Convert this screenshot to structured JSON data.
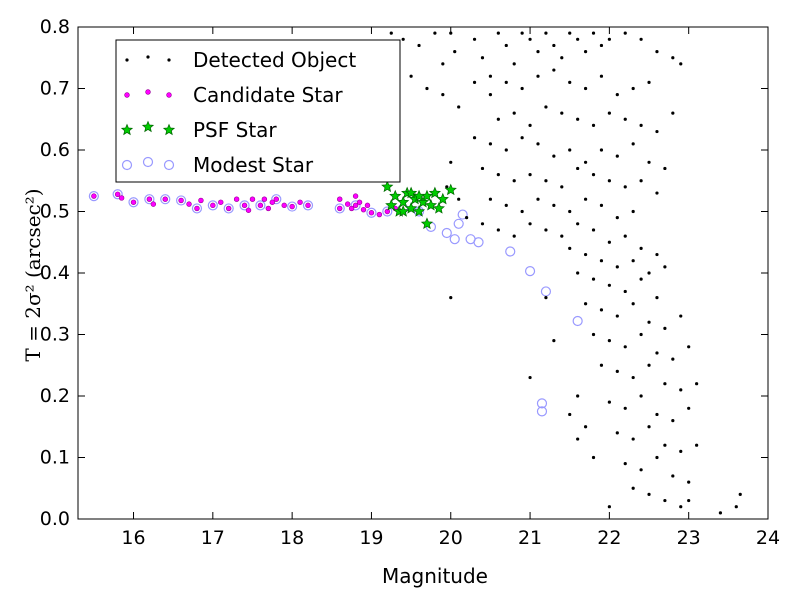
{
  "chart_data": {
    "type": "scatter",
    "xlabel": "Magnitude",
    "ylabel": "T = 2σ² (arcsec²)",
    "xlim": [
      15.3,
      24
    ],
    "ylim": [
      0.0,
      0.8
    ],
    "xticks": [
      "16",
      "17",
      "18",
      "19",
      "20",
      "21",
      "22",
      "23",
      "24"
    ],
    "yticks": [
      "0.0",
      "0.1",
      "0.2",
      "0.3",
      "0.4",
      "0.5",
      "0.6",
      "0.7",
      "0.8"
    ],
    "grid": false,
    "legend_position": "top-left",
    "colors": {
      "detected": "#000000",
      "candidate": "#ff00ff",
      "psf_fill": "#00cc00",
      "psf_edge": "#006400",
      "modest": "#9999ff"
    },
    "series": [
      {
        "name": "Detected Object",
        "marker": "dot",
        "points": [
          [
            19.25,
            0.79
          ],
          [
            19.4,
            0.78
          ],
          [
            19.6,
            0.77
          ],
          [
            19.8,
            0.79
          ],
          [
            20.0,
            0.79
          ],
          [
            20.05,
            0.76
          ],
          [
            19.9,
            0.74
          ],
          [
            20.3,
            0.78
          ],
          [
            20.4,
            0.75
          ],
          [
            20.5,
            0.72
          ],
          [
            20.6,
            0.79
          ],
          [
            20.7,
            0.77
          ],
          [
            20.8,
            0.74
          ],
          [
            20.9,
            0.79
          ],
          [
            21.0,
            0.78
          ],
          [
            21.1,
            0.76
          ],
          [
            21.2,
            0.79
          ],
          [
            21.3,
            0.77
          ],
          [
            21.4,
            0.75
          ],
          [
            21.5,
            0.79
          ],
          [
            21.6,
            0.78
          ],
          [
            21.7,
            0.76
          ],
          [
            21.8,
            0.79
          ],
          [
            21.9,
            0.77
          ],
          [
            22.0,
            0.78
          ],
          [
            22.2,
            0.79
          ],
          [
            22.4,
            0.78
          ],
          [
            22.6,
            0.76
          ],
          [
            22.8,
            0.75
          ],
          [
            22.9,
            0.74
          ],
          [
            19.5,
            0.72
          ],
          [
            19.7,
            0.7
          ],
          [
            19.9,
            0.69
          ],
          [
            20.1,
            0.67
          ],
          [
            20.3,
            0.71
          ],
          [
            20.5,
            0.69
          ],
          [
            20.7,
            0.71
          ],
          [
            20.9,
            0.7
          ],
          [
            21.1,
            0.72
          ],
          [
            21.3,
            0.73
          ],
          [
            21.5,
            0.71
          ],
          [
            21.7,
            0.7
          ],
          [
            21.9,
            0.72
          ],
          [
            22.1,
            0.69
          ],
          [
            22.3,
            0.7
          ],
          [
            22.5,
            0.71
          ],
          [
            20.6,
            0.65
          ],
          [
            20.8,
            0.66
          ],
          [
            21.0,
            0.64
          ],
          [
            21.2,
            0.67
          ],
          [
            21.4,
            0.66
          ],
          [
            21.6,
            0.65
          ],
          [
            21.8,
            0.64
          ],
          [
            22.0,
            0.66
          ],
          [
            22.2,
            0.65
          ],
          [
            22.4,
            0.64
          ],
          [
            22.6,
            0.63
          ],
          [
            22.8,
            0.66
          ],
          [
            20.3,
            0.62
          ],
          [
            20.5,
            0.61
          ],
          [
            20.7,
            0.6
          ],
          [
            20.9,
            0.62
          ],
          [
            21.1,
            0.61
          ],
          [
            21.3,
            0.59
          ],
          [
            21.5,
            0.6
          ],
          [
            21.7,
            0.58
          ],
          [
            21.9,
            0.6
          ],
          [
            22.1,
            0.59
          ],
          [
            22.3,
            0.61
          ],
          [
            22.5,
            0.58
          ],
          [
            22.7,
            0.57
          ],
          [
            20.4,
            0.57
          ],
          [
            20.6,
            0.56
          ],
          [
            20.8,
            0.55
          ],
          [
            21.0,
            0.56
          ],
          [
            21.2,
            0.55
          ],
          [
            21.4,
            0.54
          ],
          [
            21.6,
            0.57
          ],
          [
            21.8,
            0.56
          ],
          [
            22.0,
            0.55
          ],
          [
            22.2,
            0.54
          ],
          [
            22.4,
            0.55
          ],
          [
            22.6,
            0.53
          ],
          [
            20.5,
            0.52
          ],
          [
            20.7,
            0.51
          ],
          [
            20.9,
            0.5
          ],
          [
            21.1,
            0.52
          ],
          [
            21.3,
            0.51
          ],
          [
            21.5,
            0.5
          ],
          [
            21.7,
            0.52
          ],
          [
            21.9,
            0.51
          ],
          [
            22.1,
            0.49
          ],
          [
            22.3,
            0.5
          ],
          [
            20.4,
            0.48
          ],
          [
            20.6,
            0.47
          ],
          [
            20.8,
            0.46
          ],
          [
            21.0,
            0.48
          ],
          [
            21.2,
            0.47
          ],
          [
            21.4,
            0.46
          ],
          [
            21.6,
            0.48
          ],
          [
            21.8,
            0.47
          ],
          [
            22.0,
            0.45
          ],
          [
            22.2,
            0.46
          ],
          [
            22.4,
            0.44
          ],
          [
            22.6,
            0.43
          ],
          [
            21.5,
            0.44
          ],
          [
            21.7,
            0.43
          ],
          [
            21.9,
            0.42
          ],
          [
            22.1,
            0.41
          ],
          [
            22.3,
            0.42
          ],
          [
            22.5,
            0.4
          ],
          [
            22.7,
            0.41
          ],
          [
            21.6,
            0.4
          ],
          [
            21.8,
            0.39
          ],
          [
            22.0,
            0.38
          ],
          [
            22.2,
            0.37
          ],
          [
            22.4,
            0.39
          ],
          [
            22.6,
            0.36
          ],
          [
            21.7,
            0.35
          ],
          [
            21.9,
            0.34
          ],
          [
            22.1,
            0.33
          ],
          [
            22.3,
            0.35
          ],
          [
            22.5,
            0.32
          ],
          [
            22.7,
            0.31
          ],
          [
            22.9,
            0.33
          ],
          [
            21.8,
            0.3
          ],
          [
            22.0,
            0.29
          ],
          [
            22.2,
            0.28
          ],
          [
            22.4,
            0.3
          ],
          [
            22.6,
            0.27
          ],
          [
            22.8,
            0.26
          ],
          [
            23.0,
            0.28
          ],
          [
            21.9,
            0.25
          ],
          [
            22.1,
            0.24
          ],
          [
            22.3,
            0.23
          ],
          [
            22.5,
            0.25
          ],
          [
            22.7,
            0.22
          ],
          [
            22.9,
            0.21
          ],
          [
            23.1,
            0.22
          ],
          [
            21.6,
            0.2
          ],
          [
            22.0,
            0.19
          ],
          [
            22.2,
            0.18
          ],
          [
            22.4,
            0.2
          ],
          [
            22.6,
            0.17
          ],
          [
            22.8,
            0.16
          ],
          [
            23.0,
            0.18
          ],
          [
            21.7,
            0.15
          ],
          [
            22.1,
            0.14
          ],
          [
            22.3,
            0.13
          ],
          [
            22.5,
            0.15
          ],
          [
            22.7,
            0.12
          ],
          [
            22.9,
            0.11
          ],
          [
            23.1,
            0.12
          ],
          [
            21.8,
            0.1
          ],
          [
            22.2,
            0.09
          ],
          [
            22.4,
            0.08
          ],
          [
            22.6,
            0.1
          ],
          [
            22.8,
            0.07
          ],
          [
            23.0,
            0.06
          ],
          [
            22.3,
            0.05
          ],
          [
            22.5,
            0.04
          ],
          [
            22.7,
            0.03
          ],
          [
            22.9,
            0.02
          ],
          [
            23.0,
            0.03
          ],
          [
            23.4,
            0.01
          ],
          [
            23.6,
            0.02
          ],
          [
            23.65,
            0.04
          ],
          [
            22.0,
            0.02
          ],
          [
            21.6,
            0.13
          ],
          [
            21.5,
            0.17
          ],
          [
            21.3,
            0.29
          ],
          [
            21.2,
            0.36
          ],
          [
            21.0,
            0.23
          ],
          [
            20.0,
            0.36
          ],
          [
            20.1,
            0.52
          ],
          [
            20.2,
            0.49
          ],
          [
            20.0,
            0.58
          ],
          [
            19.95,
            0.54
          ],
          [
            19.1,
            0.73
          ],
          [
            19.3,
            0.69
          ]
        ]
      },
      {
        "name": "Candidate Star",
        "marker": "circle-small",
        "points": [
          [
            15.5,
            0.525
          ],
          [
            15.8,
            0.528
          ],
          [
            15.85,
            0.522
          ],
          [
            16.0,
            0.515
          ],
          [
            16.2,
            0.52
          ],
          [
            16.25,
            0.512
          ],
          [
            16.4,
            0.52
          ],
          [
            16.6,
            0.518
          ],
          [
            16.7,
            0.512
          ],
          [
            16.8,
            0.505
          ],
          [
            16.85,
            0.518
          ],
          [
            17.0,
            0.51
          ],
          [
            17.1,
            0.515
          ],
          [
            17.2,
            0.505
          ],
          [
            17.3,
            0.52
          ],
          [
            17.4,
            0.51
          ],
          [
            17.45,
            0.502
          ],
          [
            17.5,
            0.52
          ],
          [
            17.6,
            0.51
          ],
          [
            17.65,
            0.52
          ],
          [
            17.7,
            0.505
          ],
          [
            17.75,
            0.515
          ],
          [
            17.8,
            0.52
          ],
          [
            17.9,
            0.51
          ],
          [
            18.0,
            0.508
          ],
          [
            18.1,
            0.515
          ],
          [
            18.2,
            0.51
          ],
          [
            18.6,
            0.505
          ],
          [
            18.7,
            0.512
          ],
          [
            18.75,
            0.505
          ],
          [
            18.8,
            0.51
          ],
          [
            18.85,
            0.515
          ],
          [
            18.9,
            0.503
          ],
          [
            18.95,
            0.51
          ],
          [
            19.0,
            0.498
          ],
          [
            19.1,
            0.495
          ],
          [
            19.2,
            0.5
          ],
          [
            19.3,
            0.505
          ],
          [
            18.6,
            0.52
          ],
          [
            18.8,
            0.525
          ]
        ]
      },
      {
        "name": "PSF Star",
        "marker": "star",
        "points": [
          [
            19.2,
            0.54
          ],
          [
            19.25,
            0.51
          ],
          [
            19.3,
            0.525
          ],
          [
            19.35,
            0.5
          ],
          [
            19.4,
            0.515
          ],
          [
            19.45,
            0.53
          ],
          [
            19.5,
            0.505
          ],
          [
            19.55,
            0.52
          ],
          [
            19.6,
            0.5
          ],
          [
            19.65,
            0.515
          ],
          [
            19.7,
            0.525
          ],
          [
            19.75,
            0.51
          ],
          [
            19.8,
            0.53
          ],
          [
            19.85,
            0.505
          ],
          [
            19.9,
            0.52
          ],
          [
            20.0,
            0.535
          ],
          [
            19.5,
            0.53
          ],
          [
            19.4,
            0.5
          ],
          [
            19.6,
            0.525
          ],
          [
            19.7,
            0.48
          ]
        ]
      },
      {
        "name": "Modest Star",
        "marker": "circle-open",
        "points": [
          [
            15.5,
            0.525
          ],
          [
            15.8,
            0.528
          ],
          [
            16.0,
            0.515
          ],
          [
            16.2,
            0.52
          ],
          [
            16.4,
            0.52
          ],
          [
            16.6,
            0.518
          ],
          [
            16.8,
            0.505
          ],
          [
            17.0,
            0.51
          ],
          [
            17.2,
            0.505
          ],
          [
            17.4,
            0.51
          ],
          [
            17.6,
            0.51
          ],
          [
            17.8,
            0.52
          ],
          [
            18.0,
            0.508
          ],
          [
            18.2,
            0.51
          ],
          [
            18.6,
            0.505
          ],
          [
            18.8,
            0.51
          ],
          [
            19.0,
            0.498
          ],
          [
            19.2,
            0.5
          ],
          [
            19.4,
            0.505
          ],
          [
            19.6,
            0.5
          ],
          [
            19.75,
            0.475
          ],
          [
            19.95,
            0.465
          ],
          [
            20.05,
            0.455
          ],
          [
            20.1,
            0.48
          ],
          [
            20.15,
            0.495
          ],
          [
            20.25,
            0.455
          ],
          [
            20.35,
            0.45
          ],
          [
            20.75,
            0.435
          ],
          [
            21.0,
            0.403
          ],
          [
            21.2,
            0.37
          ],
          [
            21.6,
            0.322
          ],
          [
            21.15,
            0.188
          ],
          [
            21.15,
            0.175
          ]
        ]
      }
    ]
  }
}
